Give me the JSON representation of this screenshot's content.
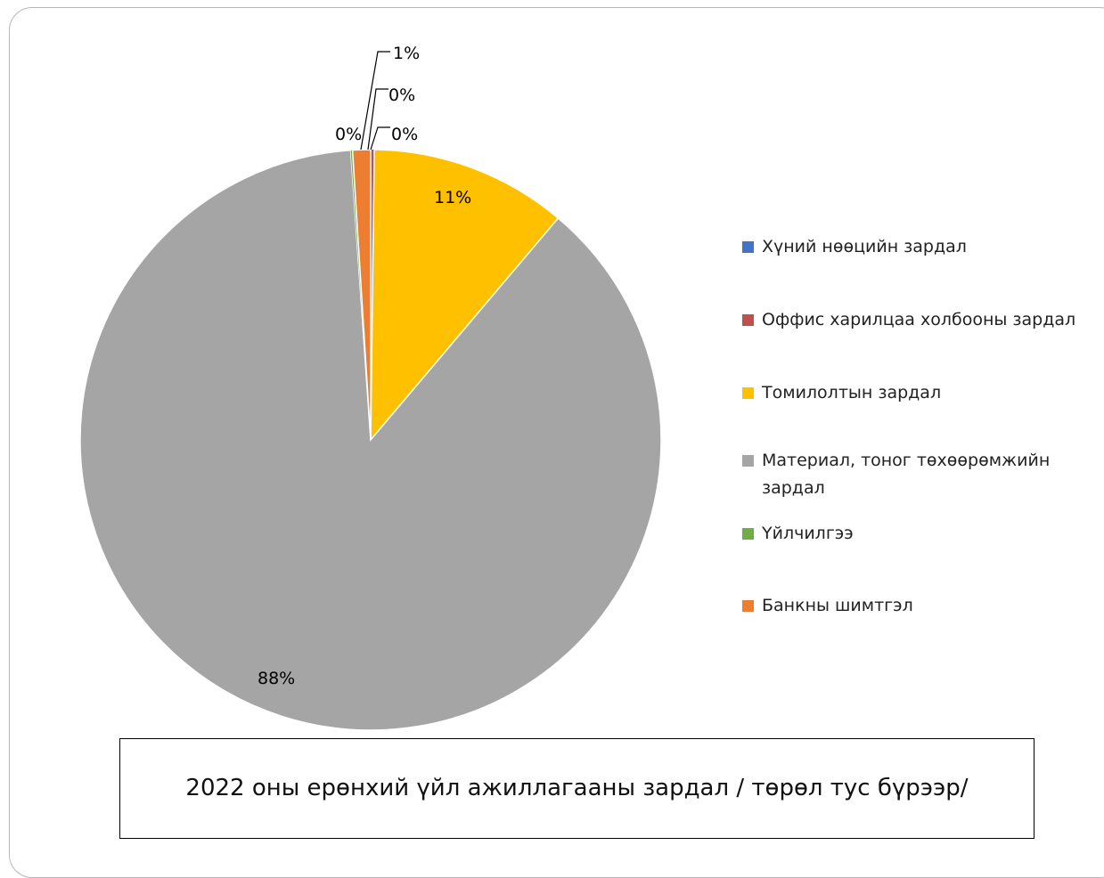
{
  "chart_data": {
    "type": "pie",
    "title": "",
    "categories": [
      "Хүний нөөцийн зардал",
      "Оффис харилцаа холбооны зардал",
      "Томилолтын зардал",
      "Материал, тоног төхөөрөмжийн зардал",
      "Үйлчилгээ",
      "Банкны шимтгэл"
    ],
    "values": [
      0.1,
      0.1,
      11,
      88,
      0.1,
      1
    ],
    "data_labels": [
      "0%",
      "0%",
      "11%",
      "88%",
      "0%",
      "1%"
    ],
    "colors": [
      "#4472C4",
      "#C0504D",
      "#FFC000",
      "#A5A5A5",
      "#70AD47",
      "#ED7D31"
    ],
    "legend_position": "right",
    "caption": "2022 оны ерөнхий үйл ажиллагааны зардал  / төрөл тус бүрээр/"
  }
}
